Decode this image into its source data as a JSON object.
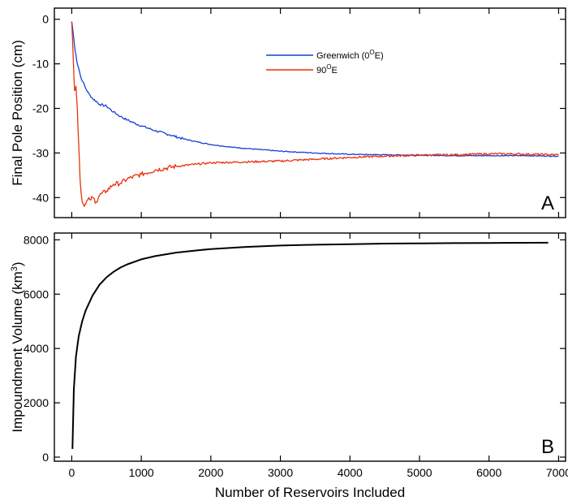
{
  "chart_data": [
    {
      "panel": "A",
      "type": "line",
      "title": "",
      "xlabel": "",
      "ylabel": "Final Pole Position (cm)",
      "xlim": [
        -250,
        7100
      ],
      "ylim": [
        -44.5,
        2.5
      ],
      "xticks": [
        0,
        1000,
        2000,
        3000,
        4000,
        5000,
        6000,
        7000
      ],
      "xtick_labels_shown": false,
      "yticks": [
        0,
        -10,
        -20,
        -30,
        -40
      ],
      "ytick_labels": [
        "0",
        "-10",
        "-20",
        "-30",
        "-40"
      ],
      "grid": false,
      "legend_position": "top-center",
      "series": [
        {
          "name": "Greenwich (0",
          "name_sup": "O",
          "name_tail": "E)",
          "color": "#1a3fd6",
          "noise": "low",
          "x": [
            0,
            20,
            40,
            60,
            80,
            100,
            130,
            160,
            200,
            250,
            300,
            350,
            400,
            500,
            600,
            700,
            800,
            900,
            1000,
            1200,
            1400,
            1600,
            1800,
            2000,
            2300,
            2600,
            3000,
            3500,
            4000,
            4500,
            5000,
            5500,
            6000,
            6500,
            7000
          ],
          "y": [
            -0.5,
            -3,
            -6,
            -8,
            -10,
            -11,
            -13,
            -14,
            -15.5,
            -16.8,
            -17.8,
            -18.4,
            -19.1,
            -19.5,
            -20.8,
            -21.8,
            -22.6,
            -23.3,
            -23.9,
            -25.0,
            -25.9,
            -26.8,
            -27.5,
            -28.1,
            -28.7,
            -29.1,
            -29.6,
            -30.0,
            -30.3,
            -30.4,
            -30.5,
            -30.6,
            -30.6,
            -30.6,
            -30.7
          ]
        },
        {
          "name": "90",
          "name_sup": "O",
          "name_tail": "E",
          "color": "#e8320e",
          "noise": "high",
          "x": [
            0,
            20,
            40,
            60,
            80,
            100,
            120,
            150,
            180,
            200,
            230,
            260,
            300,
            350,
            400,
            500,
            600,
            700,
            800,
            1000,
            1200,
            1500,
            1800,
            2000,
            2500,
            3000,
            3500,
            4000,
            4500,
            5000,
            5500,
            6000,
            6300,
            7000
          ],
          "y": [
            -0.5,
            -8,
            -16,
            -15,
            -20,
            -28,
            -36,
            -41,
            -42,
            -41.5,
            -40.5,
            -40.5,
            -40,
            -41,
            -39.5,
            -38.5,
            -37,
            -36.8,
            -35.8,
            -34.8,
            -33.8,
            -33,
            -32.5,
            -32.2,
            -32.0,
            -31.8,
            -31.4,
            -31.0,
            -30.7,
            -30.5,
            -30.4,
            -30.2,
            -30.2,
            -30.4
          ]
        }
      ],
      "annotations": [
        "A"
      ]
    },
    {
      "panel": "B",
      "type": "line",
      "title": "",
      "xlabel": "Number of Reservoirs Included",
      "ylabel": "Impoundment Volume (km",
      "ylabel_sup": "3",
      "ylabel_tail": ")",
      "xlim": [
        -250,
        7100
      ],
      "ylim": [
        -150,
        8250
      ],
      "xticks": [
        0,
        1000,
        2000,
        3000,
        4000,
        5000,
        6000,
        7000
      ],
      "xtick_labels": [
        "0",
        "1000",
        "2000",
        "3000",
        "4000",
        "5000",
        "6000",
        "7000"
      ],
      "yticks": [
        0,
        2000,
        4000,
        6000,
        8000
      ],
      "ytick_labels": [
        "0",
        "2000",
        "4000",
        "6000",
        "8000"
      ],
      "grid": false,
      "series": [
        {
          "color": "#000000",
          "x": [
            10,
            30,
            60,
            100,
            150,
            200,
            300,
            400,
            500,
            600,
            700,
            800,
            1000,
            1200,
            1500,
            1800,
            2000,
            2500,
            3000,
            3500,
            4000,
            4500,
            5000,
            5500,
            6000,
            6500,
            6850
          ],
          "y": [
            300,
            2500,
            3700,
            4450,
            5000,
            5400,
            5950,
            6350,
            6620,
            6820,
            6980,
            7100,
            7280,
            7400,
            7530,
            7610,
            7660,
            7740,
            7790,
            7820,
            7840,
            7860,
            7870,
            7880,
            7885,
            7890,
            7895
          ]
        }
      ],
      "annotations": [
        "B"
      ]
    }
  ]
}
